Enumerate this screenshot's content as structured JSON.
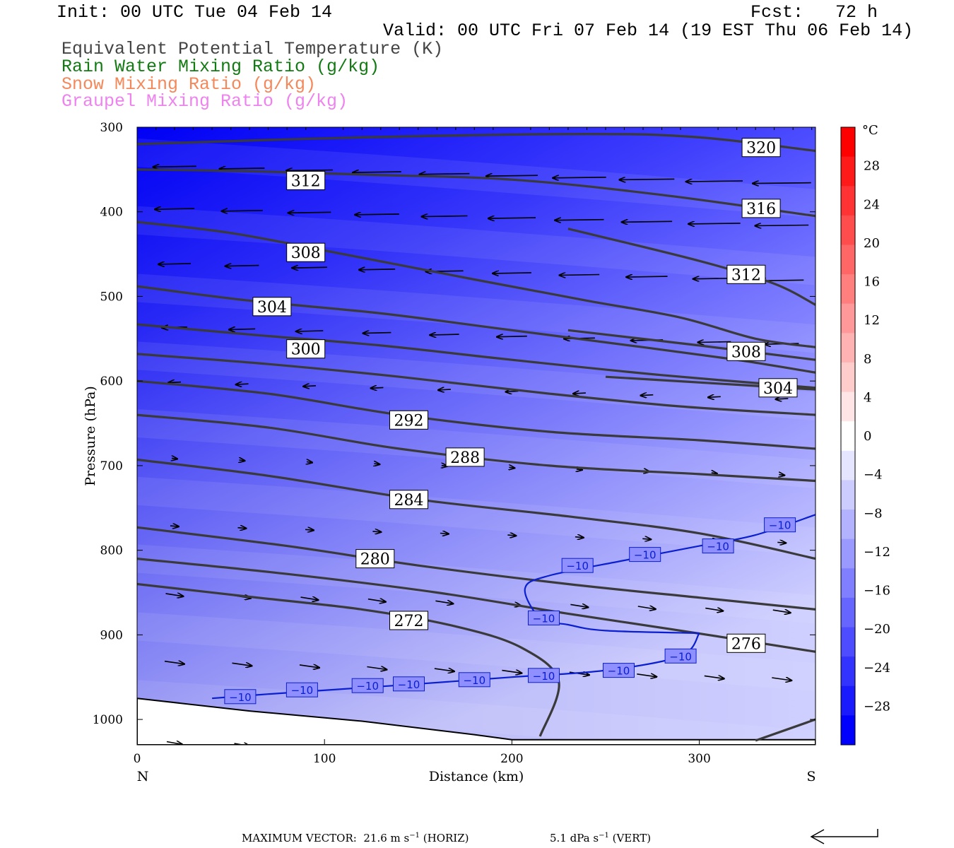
{
  "header": {
    "init": "Init: 00 UTC Tue 04 Feb 14",
    "fcst": "Fcst:   72 h",
    "valid": "Valid: 00 UTC Fri 07 Feb 14 (19 EST Thu 06 Feb 14)",
    "fields": [
      {
        "label": "Equivalent Potential Temperature (K)",
        "color": "#444444"
      },
      {
        "label": "Rain Water Mixing Ratio (g/kg)",
        "color": "#147a14"
      },
      {
        "label": "Snow Mixing Ratio (g/kg)",
        "color": "#f4885a"
      },
      {
        "label": "Graupel Mixing Ratio (g/kg)",
        "color": "#ee82ee"
      }
    ]
  },
  "chart_data": {
    "type": "cross-section",
    "xlabel": "Distance (km)",
    "ylabel": "Pressure (hPa)",
    "xlim": [
      0,
      362
    ],
    "ylim": [
      1030,
      300
    ],
    "x_ticks": [
      "0",
      "100",
      "200",
      "300"
    ],
    "x_tick_values": [
      0,
      100,
      200,
      300
    ],
    "y_ticks": [
      "300",
      "400",
      "500",
      "600",
      "700",
      "800",
      "900",
      "1000"
    ],
    "y_tick_values": [
      300,
      400,
      500,
      600,
      700,
      800,
      900,
      1000
    ],
    "end_labels": {
      "left": "N",
      "right": "S"
    },
    "colorbar": {
      "unit": "°C",
      "labels": [
        "28",
        "24",
        "20",
        "16",
        "12",
        "8",
        "4",
        "0",
        "−4",
        "−8",
        "−12",
        "−16",
        "−20",
        "−24",
        "−28"
      ],
      "label_values": [
        28,
        24,
        20,
        16,
        12,
        8,
        4,
        0,
        -4,
        -8,
        -12,
        -16,
        -20,
        -24,
        -28
      ],
      "colors": [
        "#0000ff",
        "#1a1aff",
        "#3333ff",
        "#4d4dff",
        "#6666ff",
        "#7f7fff",
        "#9999ff",
        "#b2b2ff",
        "#ccccff",
        "#e5e5ff",
        "#ffffff",
        "#ffe5e5",
        "#ffcccc",
        "#ffb2b2",
        "#ff9999",
        "#ff7f7f",
        "#ff6666",
        "#ff4d4d",
        "#ff3333",
        "#ff1a1a",
        "#ff0000"
      ],
      "min": -32,
      "max": 32
    },
    "theta_e_contours": [
      {
        "level": "320",
        "label_at": [
          333,
          324
        ],
        "points": [
          [
            0,
            320
          ],
          [
            120,
            312
          ],
          [
            240,
            308
          ],
          [
            300,
            312
          ],
          [
            362,
            328
          ]
        ]
      },
      {
        "level": "316",
        "label_at": [
          333,
          396
        ],
        "points": [
          [
            0,
            350
          ],
          [
            60,
            352
          ],
          [
            120,
            356
          ],
          [
            200,
            362
          ],
          [
            280,
            380
          ],
          [
            362,
            405
          ]
        ]
      },
      {
        "level": "312",
        "label_at": [
          90,
          363
        ],
        "points": [
          [
            0,
            412
          ],
          [
            50,
            425
          ],
          [
            110,
            450
          ],
          [
            180,
            480
          ],
          [
            240,
            505
          ],
          [
            290,
            525
          ],
          [
            330,
            550
          ],
          [
            362,
            560
          ]
        ]
      },
      {
        "level": "312",
        "label_at": [
          325,
          474
        ],
        "points": [
          [
            230,
            420
          ],
          [
            300,
            458
          ],
          [
            340,
            485
          ],
          [
            362,
            510
          ]
        ]
      },
      {
        "level": "308",
        "label_at": [
          90,
          448
        ],
        "points": [
          [
            0,
            488
          ],
          [
            60,
            505
          ],
          [
            130,
            520
          ],
          [
            200,
            540
          ],
          [
            270,
            560
          ],
          [
            320,
            575
          ],
          [
            362,
            590
          ]
        ]
      },
      {
        "level": "308",
        "label_at": [
          325,
          565
        ],
        "points": [
          [
            230,
            540
          ],
          [
            300,
            558
          ],
          [
            362,
            575
          ]
        ]
      },
      {
        "level": "304",
        "label_at": [
          72,
          512
        ],
        "points": [
          [
            0,
            533
          ],
          [
            60,
            545
          ],
          [
            130,
            558
          ],
          [
            200,
            575
          ],
          [
            280,
            593
          ],
          [
            362,
            608
          ]
        ]
      },
      {
        "level": "304",
        "label_at": [
          342,
          608
        ],
        "points": [
          [
            250,
            595
          ],
          [
            310,
            603
          ],
          [
            362,
            610
          ]
        ]
      },
      {
        "level": "300",
        "label_at": [
          90,
          562
        ],
        "points": [
          [
            0,
            568
          ],
          [
            70,
            580
          ],
          [
            140,
            595
          ],
          [
            220,
            615
          ],
          [
            290,
            630
          ],
          [
            362,
            640
          ]
        ]
      },
      {
        "level": "292",
        "label_at": [
          145,
          646
        ],
        "points": [
          [
            0,
            600
          ],
          [
            70,
            615
          ],
          [
            140,
            640
          ],
          [
            220,
            660
          ],
          [
            300,
            670
          ],
          [
            362,
            680
          ]
        ]
      },
      {
        "level": "288",
        "label_at": [
          175,
          690
        ],
        "points": [
          [
            0,
            640
          ],
          [
            70,
            655
          ],
          [
            140,
            680
          ],
          [
            220,
            700
          ],
          [
            300,
            710
          ],
          [
            362,
            718
          ]
        ]
      },
      {
        "level": "284",
        "label_at": [
          145,
          740
        ],
        "points": [
          [
            0,
            693
          ],
          [
            70,
            712
          ],
          [
            150,
            740
          ],
          [
            230,
            760
          ],
          [
            300,
            780
          ],
          [
            362,
            810
          ]
        ]
      },
      {
        "level": "280",
        "label_at": [
          127,
          810
        ],
        "points": [
          [
            0,
            773
          ],
          [
            80,
            795
          ],
          [
            150,
            818
          ],
          [
            230,
            840
          ],
          [
            300,
            856
          ],
          [
            340,
            865
          ],
          [
            362,
            870
          ]
        ]
      },
      {
        "level": "276",
        "label_at": [
          325,
          910
        ],
        "points": [
          [
            0,
            810
          ],
          [
            80,
            828
          ],
          [
            160,
            850
          ],
          [
            230,
            875
          ],
          [
            290,
            895
          ],
          [
            362,
            920
          ]
        ]
      },
      {
        "level": "272",
        "label_at": [
          145,
          883
        ],
        "points": [
          [
            0,
            840
          ],
          [
            60,
            855
          ],
          [
            120,
            870
          ],
          [
            170,
            890
          ],
          [
            205,
            915
          ],
          [
            225,
            955
          ],
          [
            215,
            1020
          ]
        ]
      },
      {
        "level": "",
        "label_at": null,
        "points": [
          [
            330,
            1025
          ],
          [
            362,
            1000
          ]
        ]
      }
    ],
    "temp_minus10_contours": [
      {
        "labels_at": [
          [
            55,
            973
          ],
          [
            88,
            965
          ],
          [
            123,
            960
          ],
          [
            145,
            958
          ],
          [
            180,
            953
          ],
          [
            217,
            948
          ],
          [
            257,
            942
          ],
          [
            290,
            925
          ]
        ],
        "points": [
          [
            40,
            975
          ],
          [
            70,
            970
          ],
          [
            110,
            964
          ],
          [
            150,
            958
          ],
          [
            200,
            950
          ],
          [
            250,
            942
          ],
          [
            290,
            925
          ],
          [
            300,
            898
          ]
        ]
      },
      {
        "labels_at": [
          [
            217,
            880
          ],
          [
            235,
            818
          ],
          [
            271,
            805
          ],
          [
            310,
            795
          ],
          [
            343,
            770
          ]
        ],
        "points": [
          [
            300,
            898
          ],
          [
            250,
            895
          ],
          [
            230,
            888
          ],
          [
            215,
            880
          ],
          [
            207,
            845
          ],
          [
            220,
            830
          ],
          [
            260,
            812
          ],
          [
            300,
            795
          ],
          [
            330,
            782
          ],
          [
            362,
            758
          ]
        ]
      }
    ],
    "temp_minus10_label": "−10",
    "max_vector_text": "MAXIMUM VECTOR:  21.6 m s",
    "max_vector_horiz": "(HORIZ)",
    "max_vector_vert_text": "5.1 dPa s",
    "max_vector_vert": "(VERT)",
    "superscript": "−1"
  }
}
